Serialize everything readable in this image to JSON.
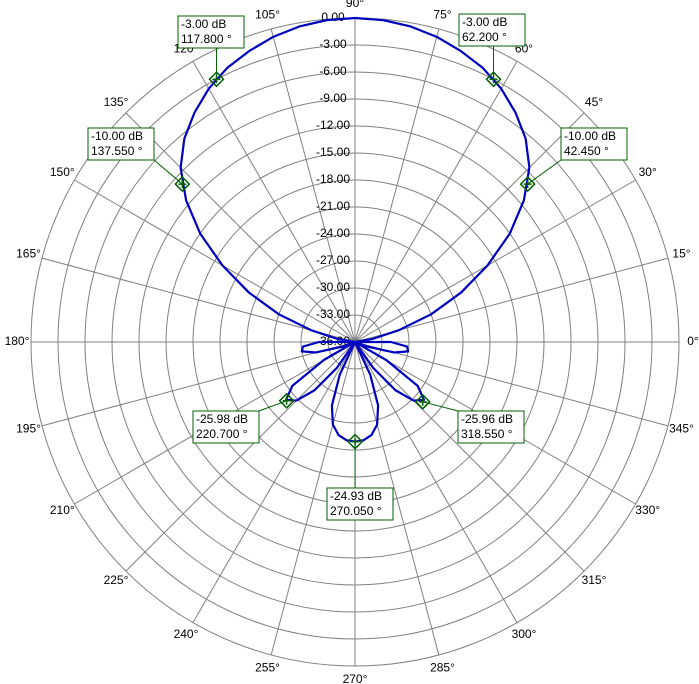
{
  "chart_data": {
    "type": "polar",
    "rlim": [
      -36,
      0
    ],
    "rticks": [
      {
        "value": 0,
        "label": "0.00"
      },
      {
        "value": -3,
        "label": "-3.00"
      },
      {
        "value": -6,
        "label": "-6.00"
      },
      {
        "value": -9,
        "label": "-9.00"
      },
      {
        "value": -12,
        "label": "-12.00"
      },
      {
        "value": -15,
        "label": "-15.00"
      },
      {
        "value": -18,
        "label": "-18.00"
      },
      {
        "value": -21,
        "label": "-21.00"
      },
      {
        "value": -24,
        "label": "-24.00"
      },
      {
        "value": -27,
        "label": "-27.00"
      },
      {
        "value": -30,
        "label": "-30.00"
      },
      {
        "value": -33,
        "label": "-33.00"
      },
      {
        "value": -36,
        "label": "-36.00"
      }
    ],
    "thetaticks": [
      {
        "value": 0,
        "label": "0°"
      },
      {
        "value": 15,
        "label": "15°"
      },
      {
        "value": 30,
        "label": "30°"
      },
      {
        "value": 45,
        "label": "45°"
      },
      {
        "value": 60,
        "label": "60°"
      },
      {
        "value": 75,
        "label": "75°"
      },
      {
        "value": 90,
        "label": "90°"
      },
      {
        "value": 105,
        "label": "105°"
      },
      {
        "value": 120,
        "label": "120°"
      },
      {
        "value": 135,
        "label": "135°"
      },
      {
        "value": 150,
        "label": "150°"
      },
      {
        "value": 165,
        "label": "165°"
      },
      {
        "value": 180,
        "label": "180°"
      },
      {
        "value": 195,
        "label": "195°"
      },
      {
        "value": 210,
        "label": "210°"
      },
      {
        "value": 225,
        "label": "225°"
      },
      {
        "value": 240,
        "label": "240°"
      },
      {
        "value": 255,
        "label": "255°"
      },
      {
        "value": 270,
        "label": "270°"
      },
      {
        "value": 285,
        "label": "285°"
      },
      {
        "value": 300,
        "label": "300°"
      },
      {
        "value": 315,
        "label": "315°"
      },
      {
        "value": 330,
        "label": "330°"
      },
      {
        "value": 345,
        "label": "345°"
      }
    ],
    "series": [
      {
        "color": "#0000c0",
        "theta": [
          0,
          5,
          10,
          15,
          20,
          25,
          30,
          35,
          40,
          45,
          50,
          55,
          60,
          65,
          70,
          75,
          80,
          85,
          90,
          95,
          100,
          105,
          110,
          115,
          120,
          125,
          130,
          135,
          140,
          145,
          150,
          155,
          160,
          165,
          170,
          175,
          180,
          185,
          190,
          195,
          200,
          205,
          210,
          215,
          220,
          225,
          230,
          235,
          240,
          245,
          250,
          255,
          260,
          265,
          270,
          275,
          280,
          285,
          290,
          295,
          300,
          305,
          310,
          315,
          320,
          325,
          330,
          335,
          340,
          345,
          350,
          355
        ],
        "values": [
          -32,
          -36,
          -34,
          -31,
          -27,
          -23,
          -19,
          -15,
          -11.5,
          -8.6,
          -6.5,
          -4.9,
          -3.5,
          -2.4,
          -1.6,
          -0.9,
          -0.4,
          -0.1,
          0,
          -0.1,
          -0.4,
          -0.9,
          -1.6,
          -2.4,
          -3.5,
          -4.9,
          -6.5,
          -8.6,
          -11.5,
          -15,
          -19,
          -23,
          -27,
          -31,
          -34,
          -36,
          -32,
          -30.2,
          -30,
          -31.5,
          -34.5,
          -36,
          -32,
          -27.5,
          -26,
          -26.8,
          -29,
          -32.5,
          -36,
          -32,
          -28.5,
          -26.5,
          -25.5,
          -25.05,
          -24.93,
          -25.05,
          -25.5,
          -26.5,
          -28.5,
          -32,
          -36,
          -32.5,
          -29,
          -26.8,
          -26,
          -27.5,
          -32,
          -36,
          -34.5,
          -31.5,
          -30,
          -30.2
        ]
      }
    ],
    "markers": {
      "color": "#006000",
      "theta": [
        117.8,
        62.2,
        137.55,
        42.45,
        220.7,
        318.55,
        270.05
      ],
      "values": [
        -3,
        -3,
        -10,
        -10,
        -25.98,
        -25.96,
        -24.93
      ],
      "value_labels": [
        "-3.00 dB",
        "-3.00 dB",
        "-10.00 dB",
        "-10.00 dB",
        "-25.98 dB",
        "-25.96 dB",
        "-24.93 dB"
      ],
      "theta_labels": [
        "117.800 °",
        "62.200 °",
        "137.550 °",
        "42.450 °",
        "220.700 °",
        "318.550 °",
        "270.050 °"
      ]
    }
  }
}
